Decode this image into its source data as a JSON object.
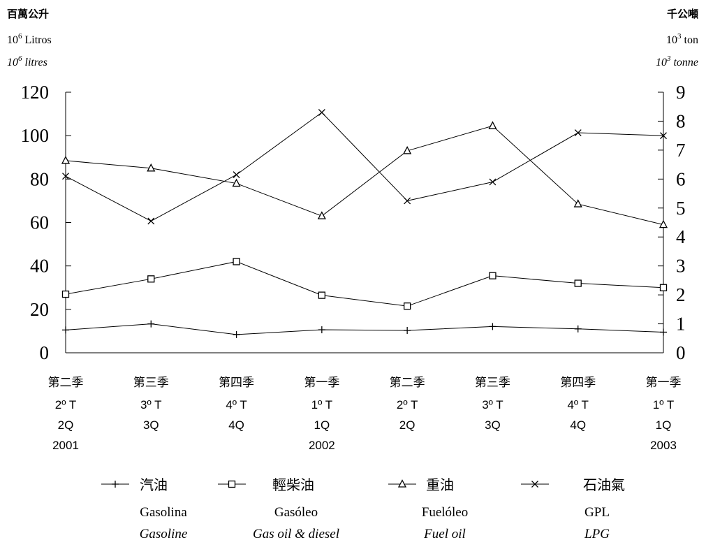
{
  "chart_data": {
    "type": "line",
    "left_axis": {
      "title_zh": "百萬公升",
      "title_pt_base": "10",
      "title_pt_exp": "6",
      "title_pt_unit": " Litros",
      "title_en_base": "10",
      "title_en_exp": "6",
      "title_en_unit": " litres",
      "ylim": [
        0,
        120
      ],
      "ticks": [
        "0",
        "20",
        "40",
        "60",
        "80",
        "100",
        "120"
      ]
    },
    "right_axis": {
      "title_zh": "千公噸",
      "title_pt_base": "10",
      "title_pt_exp": "3",
      "title_pt_unit": " ton",
      "title_en_base": "10",
      "title_en_exp": "3",
      "title_en_unit": " tonne",
      "ylim": [
        0,
        9
      ],
      "ticks": [
        "0",
        "1",
        "2",
        "3",
        "4",
        "5",
        "6",
        "7",
        "8",
        "9"
      ]
    },
    "categories": [
      {
        "zh": "第二季",
        "pt": "2º  T",
        "en": "2Q",
        "year": "2001"
      },
      {
        "zh": "第三季",
        "pt": "3º  T",
        "en": "3Q",
        "year": ""
      },
      {
        "zh": "第四季",
        "pt": "4º  T",
        "en": "4Q",
        "year": ""
      },
      {
        "zh": "第一季",
        "pt": "1º  T",
        "en": "1Q",
        "year": "2002"
      },
      {
        "zh": "第二季",
        "pt": "2º  T",
        "en": "2Q",
        "year": ""
      },
      {
        "zh": "第三季",
        "pt": "3º  T",
        "en": "3Q",
        "year": ""
      },
      {
        "zh": "第四季",
        "pt": "4º  T",
        "en": "4Q",
        "year": ""
      },
      {
        "zh": "第一季",
        "pt": "1º  T",
        "en": "1Q",
        "year": "2003"
      }
    ],
    "series": [
      {
        "name_zh": "汽油",
        "name_pt": "Gasolina",
        "name_en": "Gasoline",
        "axis": "left",
        "marker": "plus",
        "values": [
          10.5,
          13.3,
          8.4,
          10.6,
          10.3,
          12.1,
          11.0,
          9.5
        ]
      },
      {
        "name_zh": "輕柴油",
        "name_pt": "Gasóleo",
        "name_en": "Gas oil & diesel",
        "axis": "left",
        "marker": "square",
        "values": [
          27,
          34,
          42,
          26.5,
          21.5,
          35.5,
          32,
          30
        ]
      },
      {
        "name_zh": "重油",
        "name_pt": "Fuelóleo",
        "name_en": "Fuel oil",
        "axis": "left",
        "marker": "triangle",
        "values": [
          88.5,
          85,
          78,
          63,
          93,
          104.5,
          68.5,
          59
        ]
      },
      {
        "name_zh": "石油氣",
        "name_pt": "GPL",
        "name_en": "LPG",
        "axis": "right",
        "marker": "x",
        "values": [
          6.1,
          4.55,
          6.15,
          8.3,
          5.25,
          5.9,
          7.6,
          7.5
        ]
      }
    ],
    "grid": false,
    "legend_position": "bottom"
  }
}
